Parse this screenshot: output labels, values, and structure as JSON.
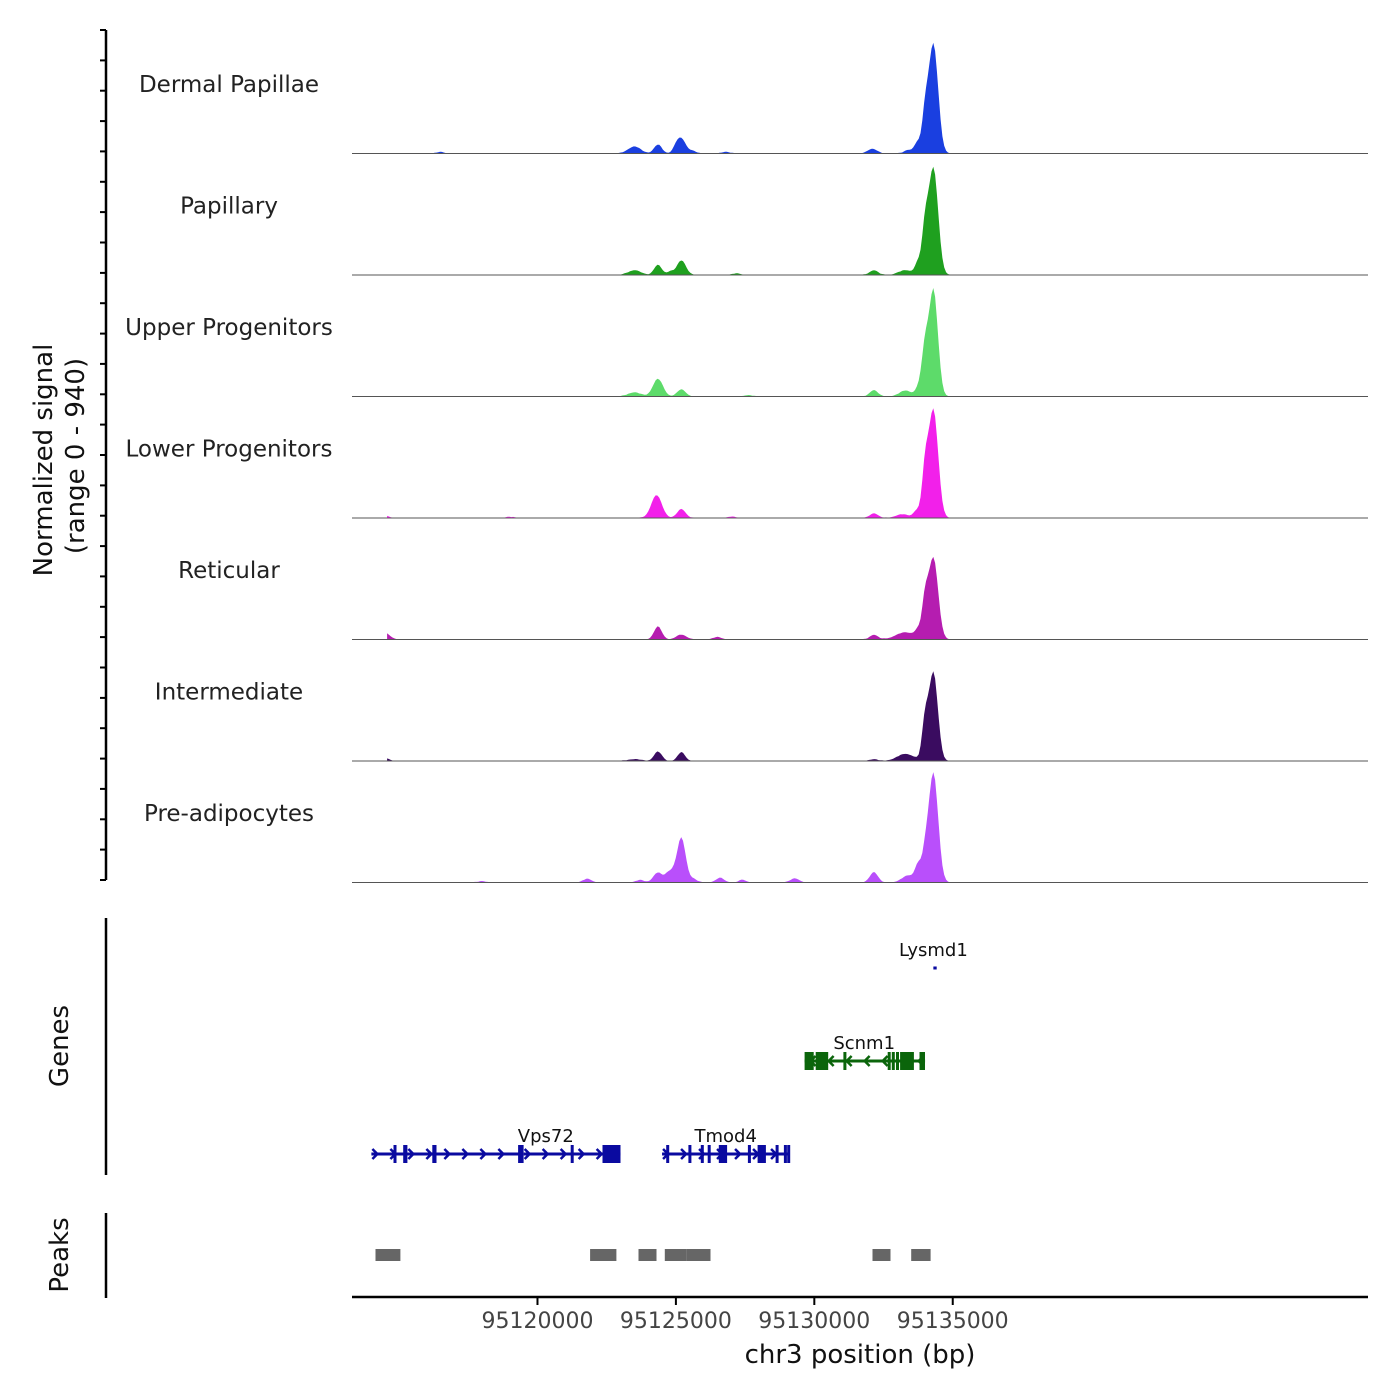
{
  "chart_data": {
    "type": "area",
    "title": "",
    "ylabel_line1": "Normalized signal",
    "ylabel_line2": "(range 0 - 940)",
    "y_range": [
      0,
      940
    ],
    "xlabel": "chr3 position (bp)",
    "xlim": [
      95113300,
      95150000
    ],
    "x_ticks": [
      95120000,
      95125000,
      95130000,
      95135000
    ],
    "x_tick_labels": [
      "95120000",
      "95125000",
      "95130000",
      "95135000"
    ],
    "tracks": [
      {
        "name": "Dermal Papillae",
        "color": "#1a3fe0",
        "peaks": [
          [
            95116500,
            12,
            120
          ],
          [
            95123500,
            60,
            220
          ],
          [
            95124350,
            75,
            140
          ],
          [
            95125000,
            40,
            110
          ],
          [
            95125200,
            125,
            160
          ],
          [
            95125600,
            20,
            120
          ],
          [
            95126800,
            15,
            120
          ],
          [
            95132100,
            40,
            160
          ],
          [
            95133400,
            30,
            140
          ],
          [
            95133720,
            90,
            110
          ],
          [
            95134000,
            300,
            110
          ],
          [
            95134300,
            940,
            170
          ]
        ]
      },
      {
        "name": "Papillary",
        "color": "#1fa01f",
        "peaks": [
          [
            95123500,
            40,
            220
          ],
          [
            95124350,
            85,
            140
          ],
          [
            95124800,
            30,
            110
          ],
          [
            95125200,
            125,
            160
          ],
          [
            95127200,
            12,
            150
          ],
          [
            95132150,
            40,
            150
          ],
          [
            95133300,
            40,
            250
          ],
          [
            95133750,
            100,
            110
          ],
          [
            95134000,
            360,
            110
          ],
          [
            95134300,
            920,
            170
          ]
        ]
      },
      {
        "name": "Upper Progenitors",
        "color": "#5ddb6a",
        "peaks": [
          [
            95123500,
            35,
            220
          ],
          [
            95124350,
            150,
            180
          ],
          [
            95125200,
            60,
            150
          ],
          [
            95127600,
            10,
            150
          ],
          [
            95132150,
            55,
            140
          ],
          [
            95133300,
            50,
            220
          ],
          [
            95133800,
            90,
            120
          ],
          [
            95134000,
            360,
            110
          ],
          [
            95134300,
            920,
            160
          ]
        ]
      },
      {
        "name": "Lower Progenitors",
        "color": "#f220ea",
        "peaks": [
          [
            95114500,
            18,
            140
          ],
          [
            95119000,
            8,
            150
          ],
          [
            95124300,
            195,
            190
          ],
          [
            95125200,
            75,
            150
          ],
          [
            95127000,
            10,
            150
          ],
          [
            95132150,
            40,
            140
          ],
          [
            95133200,
            30,
            250
          ],
          [
            95133700,
            60,
            110
          ],
          [
            95134000,
            380,
            110
          ],
          [
            95134300,
            930,
            170
          ]
        ]
      },
      {
        "name": "Reticular",
        "color": "#b51db0",
        "peaks": [
          [
            95114500,
            55,
            170
          ],
          [
            95124350,
            110,
            140
          ],
          [
            95125200,
            40,
            180
          ],
          [
            95126500,
            20,
            150
          ],
          [
            95132150,
            40,
            140
          ],
          [
            95133300,
            60,
            350
          ],
          [
            95133750,
            60,
            110
          ],
          [
            95134000,
            300,
            110
          ],
          [
            95134300,
            700,
            170
          ]
        ]
      },
      {
        "name": "Intermediate",
        "color": "#3a0c60",
        "peaks": [
          [
            95114500,
            25,
            140
          ],
          [
            95123500,
            15,
            220
          ],
          [
            95124350,
            80,
            140
          ],
          [
            95125200,
            75,
            130
          ],
          [
            95132150,
            15,
            140
          ],
          [
            95133300,
            60,
            300
          ],
          [
            95134000,
            320,
            110
          ],
          [
            95134300,
            760,
            160
          ]
        ]
      },
      {
        "name": "Pre-adipocytes",
        "color": "#b94ffb",
        "peaks": [
          [
            95114200,
            15,
            140
          ],
          [
            95118000,
            12,
            120
          ],
          [
            95121800,
            30,
            150
          ],
          [
            95123700,
            20,
            150
          ],
          [
            95124350,
            85,
            160
          ],
          [
            95124700,
            60,
            110
          ],
          [
            95124900,
            75,
            130
          ],
          [
            95125200,
            380,
            150
          ],
          [
            95125600,
            30,
            150
          ],
          [
            95126600,
            40,
            140
          ],
          [
            95127400,
            25,
            110
          ],
          [
            95129300,
            35,
            150
          ],
          [
            95132150,
            90,
            140
          ],
          [
            95133400,
            60,
            220
          ],
          [
            95133750,
            140,
            110
          ],
          [
            95134000,
            200,
            110
          ],
          [
            95134300,
            940,
            170
          ]
        ]
      }
    ],
    "genes": [
      {
        "name": "Lysmd1",
        "strand": "+",
        "color": "#0a0aa0",
        "row": 0,
        "start": 95134300,
        "end": 95134420,
        "exons": []
      },
      {
        "name": "Scnm1",
        "strand": "-",
        "color": "#0b650b",
        "row": 1,
        "start": 95129650,
        "end": 95134000,
        "exons": [
          [
            95129650,
            95129980
          ],
          [
            95130050,
            95130500
          ],
          [
            95131050,
            95131120
          ],
          [
            95132650,
            95132700
          ],
          [
            95132800,
            95132860
          ],
          [
            95132950,
            95133050
          ],
          [
            95133100,
            95133600
          ],
          [
            95133800,
            95134000
          ]
        ]
      },
      {
        "name": "Vps72",
        "strand": "+",
        "color": "#0a0aa0",
        "row": 2,
        "start": 95114000,
        "end": 95119500,
        "exons": [
          [
            95114800,
            95114900
          ],
          [
            95115150,
            95115300
          ],
          [
            95116200,
            95116350
          ],
          [
            95119300,
            95119500
          ]
        ]
      },
      {
        "name": "Vps72-cont",
        "label": "",
        "strand": "+",
        "color": "#0a0aa0",
        "row": 2,
        "start": 95119500,
        "end": 95123000,
        "exons": [
          [
            95121200,
            95121300
          ],
          [
            95122350,
            95123000
          ]
        ]
      },
      {
        "name": "Tmod4",
        "strand": "+",
        "color": "#0a0aa0",
        "row": 2,
        "start": 95124500,
        "end": 95129100,
        "exons": [
          [
            95124650,
            95124750
          ],
          [
            95125450,
            95125480
          ],
          [
            95125900,
            95126000
          ],
          [
            95126150,
            95126250
          ],
          [
            95126550,
            95126850
          ],
          [
            95127600,
            95127700
          ],
          [
            95127950,
            95128250
          ],
          [
            95128600,
            95128700
          ],
          [
            95128900,
            95129000
          ],
          [
            95129020,
            95129100
          ]
        ]
      }
    ],
    "gene_labels": [
      {
        "name": "Lysmd1",
        "x": 95134300
      },
      {
        "name": "Scnm1",
        "x": 95131800
      },
      {
        "name": "Vps72",
        "x": 95120300
      },
      {
        "name": "Tmod4",
        "x": 95126800
      }
    ],
    "genes_label": "Genes",
    "peaks_label": "Peaks",
    "peak_regions": [
      [
        95114150,
        95115050
      ],
      [
        95121900,
        95122850
      ],
      [
        95123650,
        95124300
      ],
      [
        95124600,
        95125400
      ],
      [
        95125400,
        95126250
      ],
      [
        95132100,
        95132750
      ],
      [
        95133500,
        95134200
      ]
    ]
  }
}
